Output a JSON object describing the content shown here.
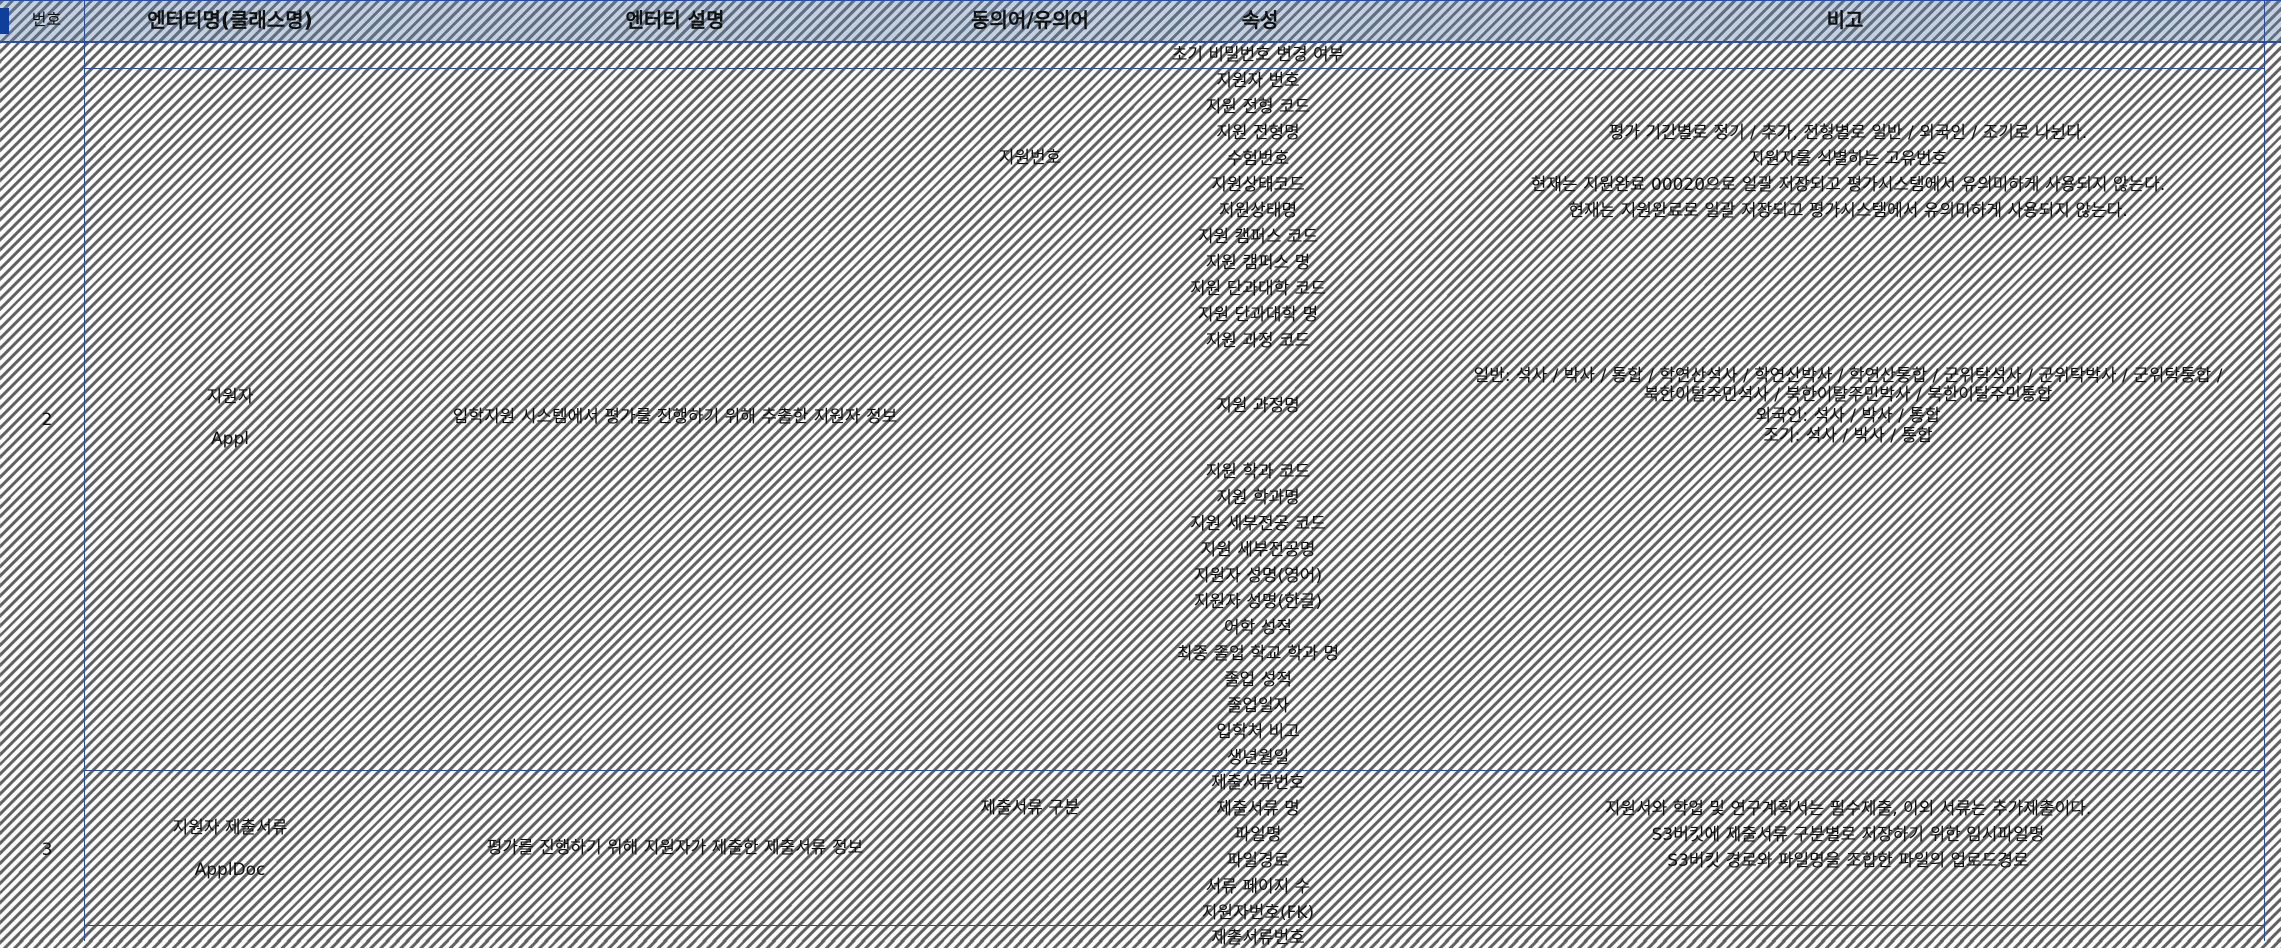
{
  "headers": {
    "no": "번호",
    "entity_name": "엔터티명(클래스명)",
    "entity_desc": "엔터티 설명",
    "synonym": "동의어/유의어",
    "attribute": "속성",
    "note": "비고"
  },
  "prev_row": {
    "attribute": "초기 비밀번호 변경 여부"
  },
  "entity2": {
    "no": "2",
    "name": "지원자",
    "class": "Appl",
    "desc": "입학지원 시스템에서 평가를 진행하기 위해 추출한 지원자 정보",
    "synonym": "지원번호",
    "attributes": [
      "지원자 번호",
      "지원 전형 코드",
      "지원 전형명",
      "수험번호",
      "지원상태코드",
      "지원상태명",
      "지원 캠퍼스 코드",
      "지원 캠퍼스 명",
      "지원 단과대학 코드",
      "지원 단과대학 명",
      "지원 과정 코드",
      "지원 과정명",
      "지원 학과 코드",
      "지원 학과명",
      "지원 세부전공 코드",
      "지원 세부전공명",
      "지원자 성명(영어)",
      "지원자 성명(한글)",
      "어학 성적",
      "최종 졸업 학교 학과 명",
      "졸업 성적",
      "졸업일자",
      "입학처 비고",
      "생년월일"
    ],
    "notes": {
      "jeonhyeong": "평가 기간별로 정기 / 추가, 전형별로 일반 / 외국인 / 조기로 나뉜다.",
      "suheom": "지원자를 식별하는 고유번호",
      "status_code": "현재는 지원완료 00020으로 일괄 저장되고 평가시스템에서 유의미하게 사용되지 않는다.",
      "status_name": "현재는 지원완료로 일괄 저장되고 평가시스템에서 유의미하게 사용되지 않는다.",
      "course": [
        "일반: 석사 / 박사 / 통합 / 학연산석사 / 학연산박사 / 학연산통합 / 군위탁석사 / 군위탁박사 / 군위탁통합 /",
        "북한이탈주민석사 / 북한이탈주민박사 / 북한이탈주민통합",
        "외국인: 석사 / 박사 / 통합",
        "조기: 석사 / 박사 / 통합"
      ]
    }
  },
  "entity3": {
    "no": "3",
    "name": "지원자 제출서류",
    "class": "ApplDoc",
    "desc": "평가를 진행하기 위해 지원자가 제출한 제출서류 정보",
    "synonym": "제출서류 구분",
    "attributes": [
      "제출서류번호",
      "제출서류 명",
      "파일명",
      "파일경로",
      "서류 페이지 수",
      "지원자번호(FK)"
    ],
    "notes": {
      "doc_name": "지원서와 학업 및 연구계획서는 필수제출, 이외 서류는 추가제출이다.",
      "file_name": "S3버킷에 제출서류 구분별로 저장하기 위한 임시파일명",
      "file_path": "S3버킷 경로와 파일명을 조합한 파일의 업로드경로"
    }
  },
  "next_row": {
    "attribute": "제출서류번호"
  }
}
